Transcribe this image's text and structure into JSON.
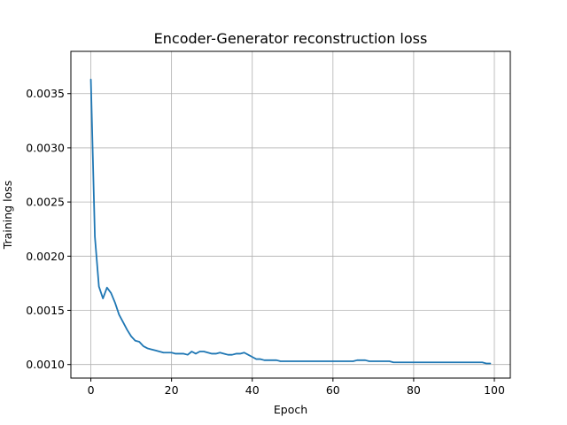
{
  "chart_data": {
    "type": "line",
    "title": "Encoder-Generator reconstruction loss",
    "xlabel": "Epoch",
    "ylabel": "Training loss",
    "xlim": [
      -4.95,
      103.95
    ],
    "ylim": [
      0.000875,
      0.00389
    ],
    "xticks": [
      0,
      20,
      40,
      60,
      80,
      100
    ],
    "xtick_labels": [
      "0",
      "20",
      "40",
      "60",
      "80",
      "100"
    ],
    "yticks": [
      0.001,
      0.0015,
      0.002,
      0.0025,
      0.003,
      0.0035
    ],
    "ytick_labels": [
      "0.0010",
      "0.0015",
      "0.0020",
      "0.0025",
      "0.0030",
      "0.0035"
    ],
    "grid": true,
    "series": [
      {
        "color": "#1f77b4",
        "x": [
          0,
          1,
          2,
          3,
          4,
          5,
          6,
          7,
          8,
          9,
          10,
          11,
          12,
          13,
          14,
          15,
          16,
          17,
          18,
          19,
          20,
          21,
          22,
          23,
          24,
          25,
          26,
          27,
          28,
          29,
          30,
          31,
          32,
          33,
          34,
          35,
          36,
          37,
          38,
          39,
          40,
          41,
          42,
          43,
          44,
          45,
          46,
          47,
          48,
          49,
          50,
          51,
          52,
          53,
          54,
          55,
          56,
          57,
          58,
          59,
          60,
          61,
          62,
          63,
          64,
          65,
          66,
          67,
          68,
          69,
          70,
          71,
          72,
          73,
          74,
          75,
          76,
          77,
          78,
          79,
          80,
          81,
          82,
          83,
          84,
          85,
          86,
          87,
          88,
          89,
          90,
          91,
          92,
          93,
          94,
          95,
          96,
          97,
          98,
          99
        ],
        "y": [
          0.00363,
          0.00218,
          0.00172,
          0.00161,
          0.00171,
          0.00166,
          0.00157,
          0.00146,
          0.00139,
          0.00132,
          0.00126,
          0.00122,
          0.00121,
          0.00117,
          0.00115,
          0.00114,
          0.00113,
          0.00112,
          0.00111,
          0.00111,
          0.00111,
          0.0011,
          0.0011,
          0.0011,
          0.00109,
          0.00112,
          0.0011,
          0.00112,
          0.00112,
          0.00111,
          0.0011,
          0.0011,
          0.00111,
          0.0011,
          0.00109,
          0.00109,
          0.0011,
          0.0011,
          0.00111,
          0.00109,
          0.00107,
          0.00105,
          0.00105,
          0.00104,
          0.00104,
          0.00104,
          0.00104,
          0.00103,
          0.00103,
          0.00103,
          0.00103,
          0.00103,
          0.00103,
          0.00103,
          0.00103,
          0.00103,
          0.00103,
          0.00103,
          0.00103,
          0.00103,
          0.00103,
          0.00103,
          0.00103,
          0.00103,
          0.00103,
          0.00103,
          0.00104,
          0.00104,
          0.00104,
          0.00103,
          0.00103,
          0.00103,
          0.00103,
          0.00103,
          0.00103,
          0.00102,
          0.00102,
          0.00102,
          0.00102,
          0.00102,
          0.00102,
          0.00102,
          0.00102,
          0.00102,
          0.00102,
          0.00102,
          0.00102,
          0.00102,
          0.00102,
          0.00102,
          0.00102,
          0.00102,
          0.00102,
          0.00102,
          0.00102,
          0.00102,
          0.00102,
          0.00102,
          0.00101,
          0.00101
        ]
      }
    ]
  }
}
